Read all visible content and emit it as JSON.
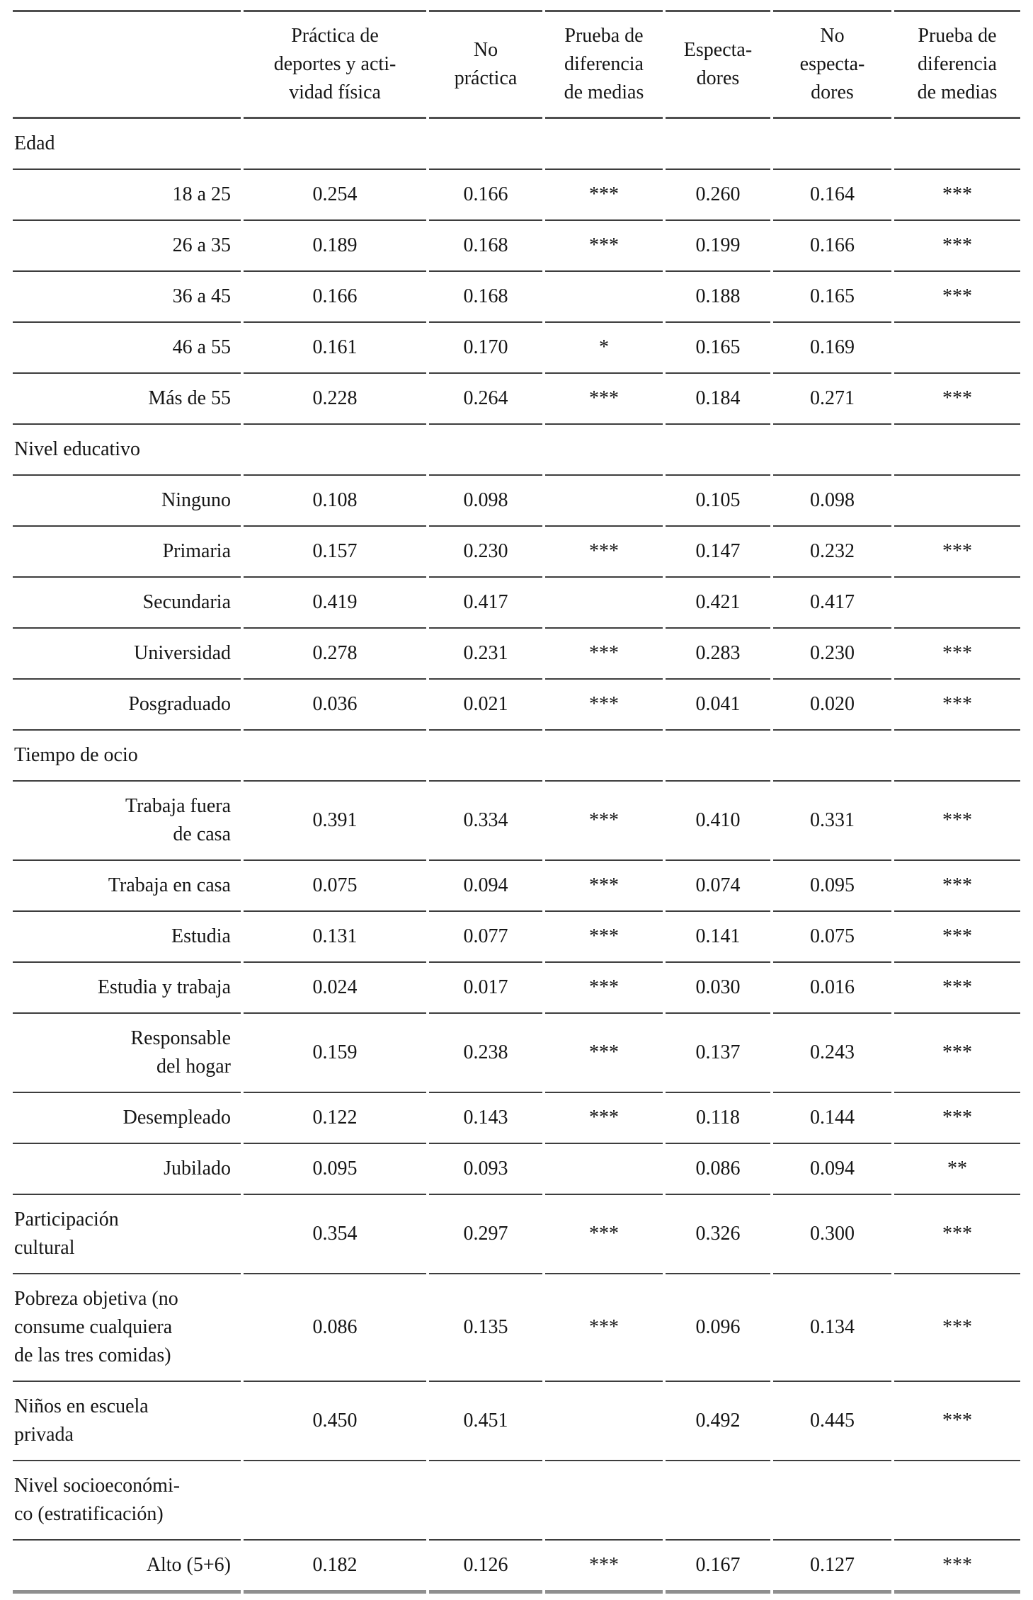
{
  "table": {
    "columns": [
      "",
      "Práctica de\ndeportes y acti-\nvidad física",
      "No\npráctica",
      "Prueba de\ndiferencia\nde medias",
      "Especta-\ndores",
      "No\nespecta-\ndores",
      "Prueba de\ndiferencia\nde medias"
    ],
    "rows": [
      {
        "label": "Edad",
        "type": "section",
        "align": "left",
        "values": [
          "",
          "",
          "",
          "",
          "",
          ""
        ]
      },
      {
        "label": "18 a 25",
        "type": "data",
        "align": "right",
        "values": [
          "0.254",
          "0.166",
          "***",
          "0.260",
          "0.164",
          "***"
        ]
      },
      {
        "label": "26 a 35",
        "type": "data",
        "align": "right",
        "values": [
          "0.189",
          "0.168",
          "***",
          "0.199",
          "0.166",
          "***"
        ]
      },
      {
        "label": "36 a 45",
        "type": "data",
        "align": "right",
        "values": [
          "0.166",
          "0.168",
          "",
          "0.188",
          "0.165",
          "***"
        ]
      },
      {
        "label": "46 a 55",
        "type": "data",
        "align": "right",
        "values": [
          "0.161",
          "0.170",
          "*",
          "0.165",
          "0.169",
          ""
        ]
      },
      {
        "label": "Más de 55",
        "type": "data",
        "align": "right",
        "values": [
          "0.228",
          "0.264",
          "***",
          "0.184",
          "0.271",
          "***"
        ]
      },
      {
        "label": "Nivel educativo",
        "type": "section",
        "align": "left",
        "values": [
          "",
          "",
          "",
          "",
          "",
          ""
        ]
      },
      {
        "label": "Ninguno",
        "type": "data",
        "align": "right",
        "values": [
          "0.108",
          "0.098",
          "",
          "0.105",
          "0.098",
          ""
        ]
      },
      {
        "label": "Primaria",
        "type": "data",
        "align": "right",
        "values": [
          "0.157",
          "0.230",
          "***",
          "0.147",
          "0.232",
          "***"
        ]
      },
      {
        "label": "Secundaria",
        "type": "data",
        "align": "right",
        "values": [
          "0.419",
          "0.417",
          "",
          "0.421",
          "0.417",
          ""
        ]
      },
      {
        "label": "Universidad",
        "type": "data",
        "align": "right",
        "values": [
          "0.278",
          "0.231",
          "***",
          "0.283",
          "0.230",
          "***"
        ]
      },
      {
        "label": "Posgraduado",
        "type": "data",
        "align": "right",
        "values": [
          "0.036",
          "0.021",
          "***",
          "0.041",
          "0.020",
          "***"
        ]
      },
      {
        "label": "Tiempo de ocio",
        "type": "section",
        "align": "left",
        "values": [
          "",
          "",
          "",
          "",
          "",
          ""
        ]
      },
      {
        "label": "Trabaja fuera\nde casa",
        "type": "data",
        "align": "right",
        "values": [
          "0.391",
          "0.334",
          "***",
          "0.410",
          "0.331",
          "***"
        ]
      },
      {
        "label": "Trabaja en casa",
        "type": "data",
        "align": "right",
        "values": [
          "0.075",
          "0.094",
          "***",
          "0.074",
          "0.095",
          "***"
        ]
      },
      {
        "label": "Estudia",
        "type": "data",
        "align": "right",
        "values": [
          "0.131",
          "0.077",
          "***",
          "0.141",
          "0.075",
          "***"
        ]
      },
      {
        "label": "Estudia y trabaja",
        "type": "data",
        "align": "right",
        "values": [
          "0.024",
          "0.017",
          "***",
          "0.030",
          "0.016",
          "***"
        ]
      },
      {
        "label": "Responsable\ndel hogar",
        "type": "data",
        "align": "right",
        "values": [
          "0.159",
          "0.238",
          "***",
          "0.137",
          "0.243",
          "***"
        ]
      },
      {
        "label": "Desempleado",
        "type": "data",
        "align": "right",
        "values": [
          "0.122",
          "0.143",
          "***",
          "0.118",
          "0.144",
          "***"
        ]
      },
      {
        "label": "Jubilado",
        "type": "data",
        "align": "right",
        "values": [
          "0.095",
          "0.093",
          "",
          "0.086",
          "0.094",
          "**"
        ]
      },
      {
        "label": "Participación\ncultural",
        "type": "data",
        "align": "left",
        "values": [
          "0.354",
          "0.297",
          "***",
          "0.326",
          "0.300",
          "***"
        ]
      },
      {
        "label": "Pobreza objetiva (no\nconsume cualquiera\nde las tres comidas)",
        "type": "data",
        "align": "left",
        "values": [
          "0.086",
          "0.135",
          "***",
          "0.096",
          "0.134",
          "***"
        ]
      },
      {
        "label": "Niños en escuela\nprivada",
        "type": "data",
        "align": "left",
        "values": [
          "0.450",
          "0.451",
          "",
          "0.492",
          "0.445",
          "***"
        ]
      },
      {
        "label": "Nivel socioeconómi-\nco (estratificación)",
        "type": "section",
        "align": "left",
        "values": [
          "",
          "",
          "",
          "",
          "",
          ""
        ]
      },
      {
        "label": "Alto (5+6)",
        "type": "data",
        "align": "right",
        "values": [
          "0.182",
          "0.126",
          "***",
          "0.167",
          "0.127",
          "***"
        ]
      }
    ]
  }
}
